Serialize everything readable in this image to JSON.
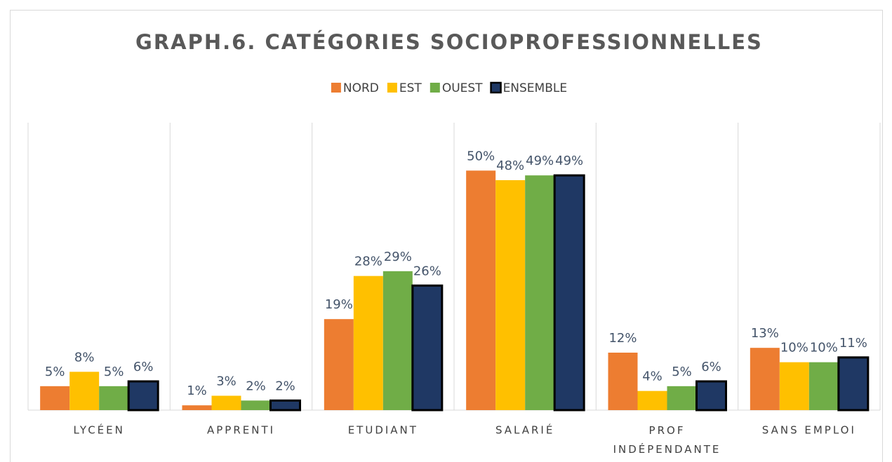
{
  "chart_data": {
    "type": "bar",
    "title": "GRAPH.6. CATÉGORIES SOCIOPROFESSIONNELLES",
    "categories": [
      "LYCÉEN",
      "APPRENTI",
      "ETUDIANT",
      "SALARIÉ",
      "PROF INDÉPENDANTE",
      "SANS EMPLOI"
    ],
    "series": [
      {
        "name": "NORD",
        "color": "#ED7D31",
        "values": [
          5,
          1,
          19,
          50,
          12,
          13
        ],
        "value_labels": [
          "5%",
          "1%",
          "19%",
          "50%",
          "12%",
          "13%"
        ]
      },
      {
        "name": "EST",
        "color": "#FFC000",
        "values": [
          8,
          3,
          28,
          48,
          4,
          10
        ],
        "value_labels": [
          "8%",
          "3%",
          "28%",
          "48%",
          "4%",
          "10%"
        ]
      },
      {
        "name": "OUEST",
        "color": "#70AD47",
        "values": [
          5,
          2,
          29,
          49,
          5,
          10
        ],
        "value_labels": [
          "5%",
          "2%",
          "29%",
          "49%",
          "5%",
          "10%"
        ]
      },
      {
        "name": "ENSEMBLE",
        "color": "#1F3864",
        "values": [
          6,
          2,
          26,
          49,
          6,
          11
        ],
        "value_labels": [
          "6%",
          "2%",
          "26%",
          "49%",
          "6%",
          "11%"
        ]
      }
    ],
    "ylim": [
      0,
      60
    ],
    "legend": "top"
  }
}
